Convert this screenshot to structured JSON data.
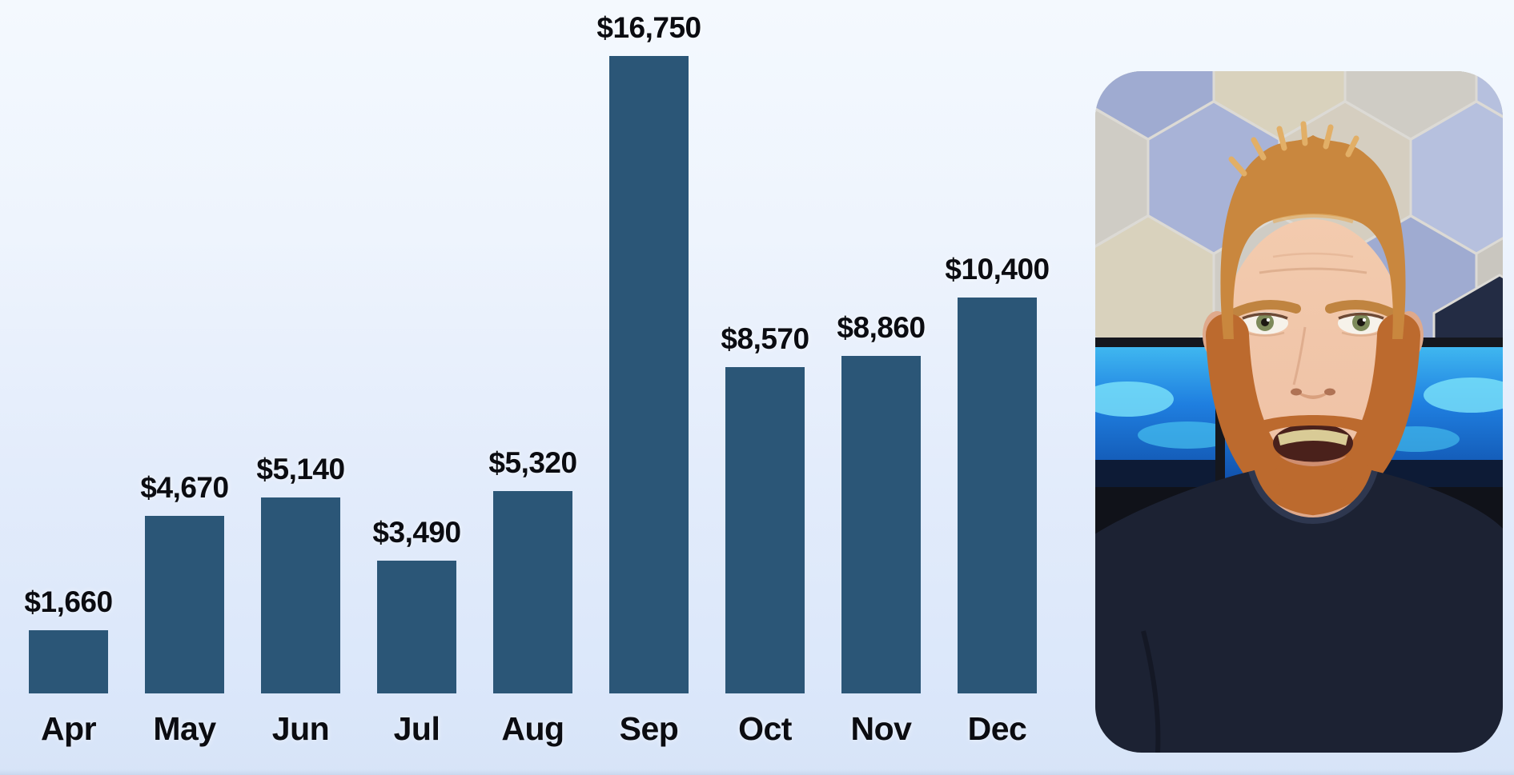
{
  "page": {
    "background_top": "#f4f9fe",
    "background_bottom": "#d7e4f8",
    "bottom_edge_color": "#c9d7ee"
  },
  "chart_data": {
    "type": "bar",
    "title": "",
    "xlabel": "",
    "ylabel": "",
    "categories": [
      "Apr",
      "May",
      "Jun",
      "Jul",
      "Aug",
      "Sep",
      "Oct",
      "Nov",
      "Dec"
    ],
    "values": [
      1660,
      4670,
      5140,
      3490,
      5320,
      16750,
      8570,
      8860,
      10400
    ],
    "value_labels": [
      "$1,660",
      "$4,670",
      "$5,140",
      "$3,490",
      "$5,320",
      "$16,750",
      "$8,570",
      "$8,860",
      "$10,400"
    ],
    "ylim": [
      0,
      16750
    ],
    "grid": false,
    "legend": false,
    "axis_lines": false,
    "bar_color": "#2b5677",
    "text_color": "#0b0c11"
  },
  "webcam": {
    "shape": "rounded-rectangle",
    "colors": {
      "wall_panel_base": "#c9c6bf",
      "hex_seam": "#dcdad5",
      "hex_periwinkle": "#9fabd1",
      "hex_periwinkle_mid": "#a8b3d7",
      "hex_periwinkle_light": "#b6c0de",
      "hex_cream": "#d9d2bd",
      "hex_beige": "#d5cec0",
      "hex_pale_gray": "#cfccc5",
      "hex_dark_navy": "#232c44",
      "monitor_bezel": "#15171e",
      "monitor_screen_top": "#3fb7f0",
      "monitor_screen_mid": "#1f7fe0",
      "monitor_screen_deep": "#0f4ca6",
      "monitor_cyan_glow": "#7ce4fa",
      "monitor_land_dark": "#0d1b36",
      "desk_dark": "#101219",
      "shirt_navy": "#1c2233",
      "collar_navy": "#2e374f",
      "skin": "#eec0a4",
      "skin_shadow": "#dfa98b",
      "hair_ginger": "#c9873e",
      "hair_light": "#e2af67",
      "beard_ginger": "#bc6a2e",
      "eye_iris": "#7d8a5a",
      "mouth_dark": "#4a211b",
      "teeth": "#d9cb96",
      "lip": "#cf8e70"
    }
  }
}
